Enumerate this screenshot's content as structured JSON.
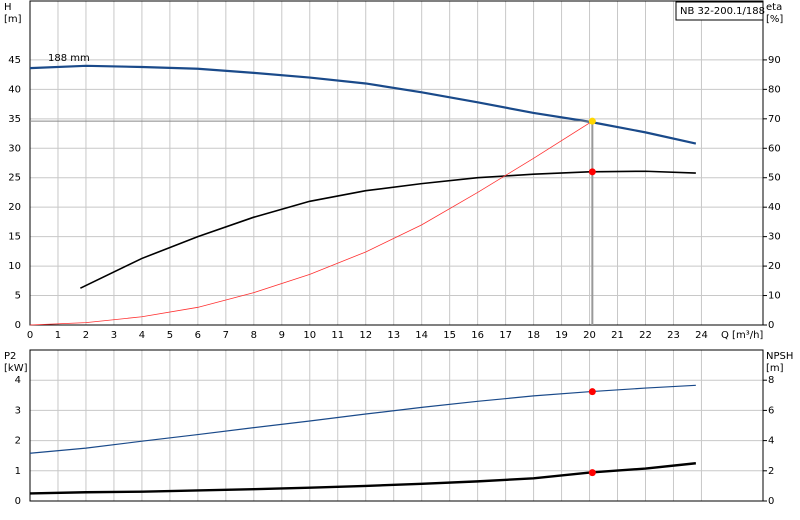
{
  "chart_data": [
    {
      "type": "line",
      "title": "NB 32-200.1/188",
      "annotation": "188 mm",
      "ylabel": [
        "H",
        "[m]"
      ],
      "y2label": [
        "eta",
        "[%]"
      ],
      "xlabel": "Q [m³/h]",
      "xlim": [
        0,
        26.2
      ],
      "xticks": [
        0,
        1,
        2,
        3,
        4,
        5,
        6,
        7,
        8,
        9,
        10,
        11,
        12,
        13,
        14,
        15,
        16,
        17,
        18,
        19,
        20,
        21,
        22,
        23,
        24
      ],
      "ylim": [
        0,
        55
      ],
      "yticks": [
        0,
        5,
        10,
        15,
        20,
        25,
        30,
        35,
        40,
        45
      ],
      "y2lim": [
        0,
        110
      ],
      "y2ticks": [
        0,
        10,
        20,
        30,
        40,
        50,
        60,
        70,
        80,
        90
      ],
      "grid": true,
      "series": [
        {
          "color": "#1a4a8a",
          "width": 2.2,
          "x": [
            0,
            2,
            4,
            6,
            8,
            10,
            12,
            14,
            16,
            18,
            20,
            22,
            23.8
          ],
          "values": [
            43.6,
            44,
            43.8,
            43.5,
            42.8,
            42,
            41,
            39.5,
            37.8,
            36,
            34.5,
            32.7,
            30.8
          ]
        },
        {
          "color": "#000000",
          "width": 1.6,
          "axis": "y2",
          "x": [
            1.8,
            4,
            6,
            8,
            10,
            12,
            14,
            16,
            18,
            20,
            22,
            23.8
          ],
          "values": [
            12.5,
            22.6,
            30,
            36.6,
            42,
            45.6,
            48,
            50,
            51.2,
            52,
            52.2,
            51.6
          ]
        },
        {
          "color": "#ff3030",
          "width": 0.8,
          "x": [
            0,
            2,
            4,
            6,
            8,
            10,
            12,
            14,
            16,
            18,
            20.1
          ],
          "values": [
            0,
            0.4,
            1.4,
            3,
            5.5,
            8.6,
            12.4,
            17,
            22.5,
            28.3,
            34.6
          ]
        }
      ],
      "markers": [
        {
          "x": 20.1,
          "value": 34.6,
          "color": "#ffd700",
          "guides": true
        },
        {
          "x": 20.1,
          "value": 52,
          "axis": "y2",
          "color": "#ff0000"
        }
      ]
    },
    {
      "type": "line",
      "ylabel": [
        "P2",
        "[kW]"
      ],
      "y2label": [
        "NPSH",
        "[m]"
      ],
      "ylim": [
        0,
        5
      ],
      "yticks": [
        0,
        1,
        2,
        3,
        4
      ],
      "y2lim": [
        0,
        10
      ],
      "y2ticks": [
        0,
        2,
        4,
        6,
        8
      ],
      "grid": true,
      "series": [
        {
          "color": "#1a4a8a",
          "width": 1.2,
          "x": [
            0,
            2,
            4,
            6,
            8,
            10,
            12,
            14,
            16,
            18,
            20,
            22,
            23.8
          ],
          "values": [
            1.58,
            1.75,
            1.98,
            2.2,
            2.43,
            2.65,
            2.88,
            3.1,
            3.3,
            3.48,
            3.62,
            3.74,
            3.83
          ]
        },
        {
          "color": "#000000",
          "width": 2.4,
          "axis": "y2",
          "x": [
            0,
            2,
            4,
            6,
            8,
            10,
            12,
            14,
            16,
            18,
            20,
            22,
            23.8
          ],
          "values": [
            0.5,
            0.58,
            0.62,
            0.7,
            0.78,
            0.88,
            1.0,
            1.14,
            1.3,
            1.5,
            1.88,
            2.15,
            2.5
          ]
        }
      ],
      "markers": [
        {
          "x": 20.1,
          "value": 3.62,
          "color": "#ff0000"
        },
        {
          "x": 20.1,
          "value": 1.88,
          "axis": "y2",
          "color": "#ff0000"
        }
      ]
    }
  ]
}
